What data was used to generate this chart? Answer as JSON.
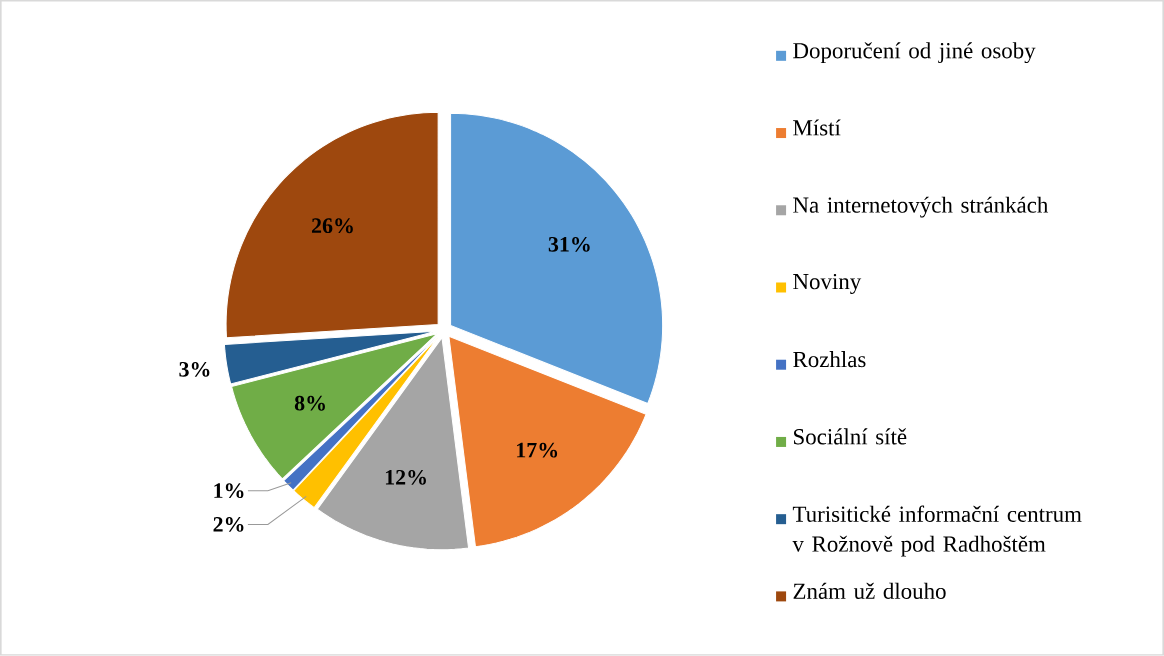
{
  "chart_data": {
    "type": "pie",
    "categories": [
      "Doporučení od jiné osoby",
      "Místí",
      "Na internetových stránkách",
      "Noviny",
      "Rozhlas",
      "Sociální sítě",
      "Turisitické informační centrum v Rožnově pod Radhoštěm",
      "Znám už dlouho"
    ],
    "values": [
      31,
      17,
      12,
      2,
      1,
      8,
      3,
      26
    ],
    "value_labels": [
      "31%",
      "17%",
      "12%",
      "2%",
      "1%",
      "8%",
      "3%",
      "26%"
    ],
    "colors": [
      "#5b9bd5",
      "#ed7d31",
      "#a5a5a5",
      "#ffc000",
      "#4472c4",
      "#70ad47",
      "#255e91",
      "#9e480e"
    ],
    "legend": "right"
  }
}
